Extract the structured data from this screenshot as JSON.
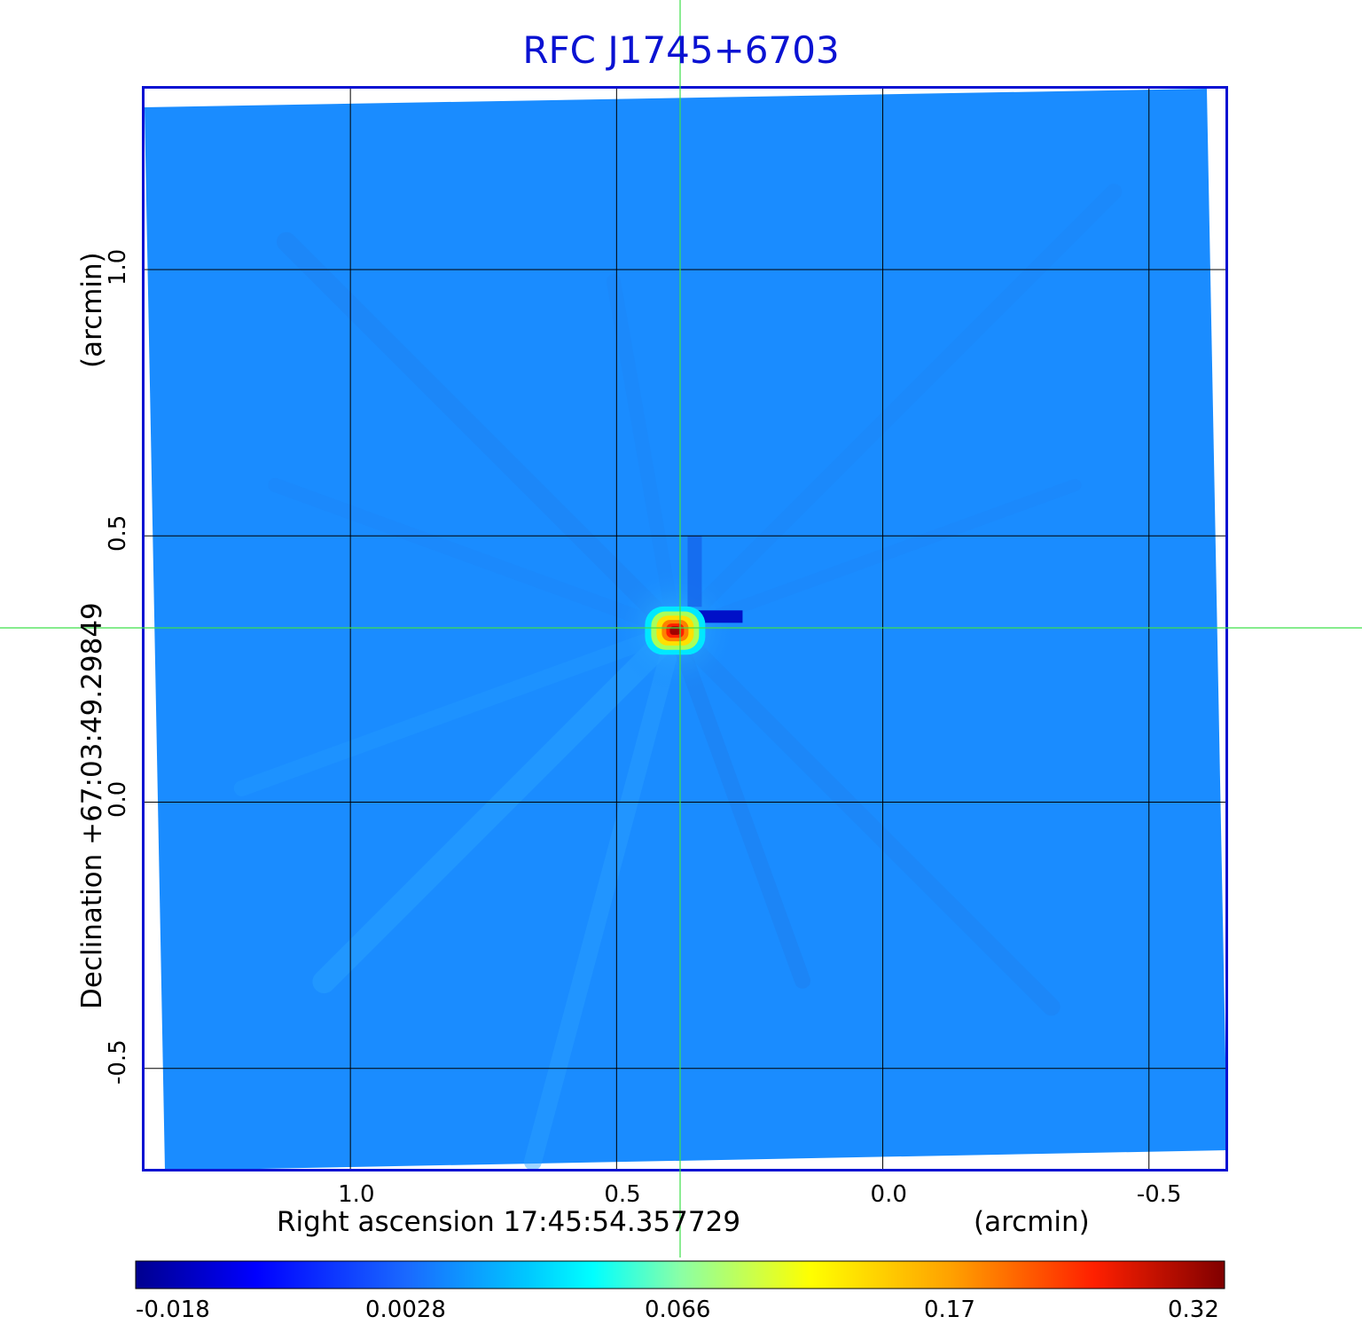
{
  "chart_data": {
    "type": "heatmap",
    "title": "RFC J1745+6703",
    "xlabel": "Right ascension  17:45:54.357729",
    "x_unit": "(arcmin)",
    "ylabel": "Declination  +67:03:49.29849",
    "y_unit": "(arcmin)",
    "x_ticks": [
      1.0,
      0.5,
      0.0,
      -0.5
    ],
    "x_tick_labels": [
      "1.0",
      "0.5",
      "0.0",
      "-0.5"
    ],
    "y_ticks": [
      1.0,
      0.5,
      0.0,
      -0.5
    ],
    "y_tick_labels": [
      "1.0",
      "0.5",
      "0.0",
      "-0.5"
    ],
    "xlim": [
      1.39,
      -0.647
    ],
    "ylim": [
      -0.692,
      1.343
    ],
    "grid": true,
    "crosshair": {
      "ra_offset": 0.382,
      "dec_offset": 0.327
    },
    "colorbar": {
      "labels": [
        "-0.018",
        "0.0028",
        "0.066",
        "0.17",
        "0.32"
      ],
      "colormap": "jet",
      "placement": "bottom"
    },
    "peak": {
      "ra_offset": 0.39,
      "dec_offset": 0.322,
      "value": 0.32
    },
    "background_level": 0.002,
    "min_feature": {
      "ra_offset": 0.3,
      "dec_offset": 0.35,
      "value": -0.018
    }
  },
  "colors": {
    "title": "#0a12d2",
    "frame": "#0a12d2",
    "crosshair": "#3ee04a",
    "grid": "#000000",
    "background_map": "#1a8cff"
  }
}
